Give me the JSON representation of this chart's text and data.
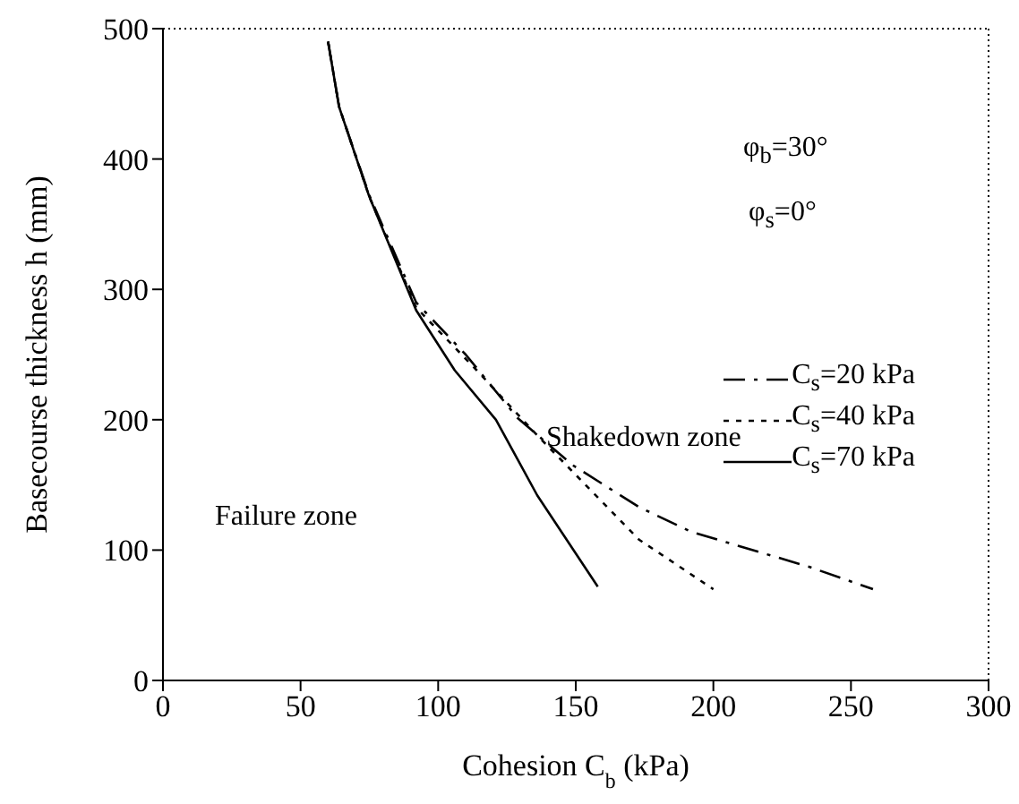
{
  "chart_data": {
    "type": "line",
    "xlabel": "Cohesion  C$_{b}$ (kPa)",
    "ylabel": "Basecourse thickness  h  (mm)",
    "annotations": [
      "φ$_{b}$=30°",
      "φ$_{s}$=0°",
      "Shakedown zone",
      "Failure zone"
    ],
    "series": [
      {
        "name": "C$_{s}$=20 kPa",
        "color": "#000000",
        "line_style": "dashed",
        "x": [
          60,
          64,
          75,
          92,
          110,
          129,
          149,
          173,
          192,
          235,
          258
        ],
        "values": [
          490,
          440,
          372,
          290,
          250,
          201,
          165,
          133,
          114,
          87,
          70
        ]
      },
      {
        "name": "C$_{s}$=40 kPa",
        "color": "#000000",
        "line_style": "dotted",
        "x": [
          60,
          64,
          75,
          92,
          114,
          136,
          173,
          200
        ],
        "values": [
          490,
          440,
          371,
          286,
          238,
          188,
          108,
          70
        ]
      },
      {
        "name": "C$_{s}$=70 kPa",
        "color": "#000000",
        "line_style": "solid",
        "x": [
          60,
          64,
          75,
          92,
          106,
          121,
          136,
          158
        ],
        "values": [
          490,
          440,
          371,
          284,
          238,
          200,
          142,
          72
        ]
      }
    ],
    "xlim": [
      0,
      300
    ],
    "xticks": [
      0,
      50,
      100,
      150,
      200,
      250,
      300
    ],
    "ylim": [
      0,
      500
    ],
    "yticks": [
      0,
      100,
      200,
      300,
      400,
      500
    ],
    "legend": "right",
    "marker": "none"
  }
}
